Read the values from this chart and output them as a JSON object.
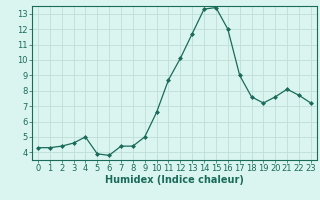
{
  "x": [
    0,
    1,
    2,
    3,
    4,
    5,
    6,
    7,
    8,
    9,
    10,
    11,
    12,
    13,
    14,
    15,
    16,
    17,
    18,
    19,
    20,
    21,
    22,
    23
  ],
  "y": [
    4.3,
    4.3,
    4.4,
    4.6,
    5.0,
    3.9,
    3.8,
    4.4,
    4.4,
    5.0,
    6.6,
    8.7,
    10.1,
    11.7,
    13.3,
    13.4,
    12.0,
    9.0,
    7.6,
    7.2,
    7.6,
    8.1,
    7.7,
    7.2
  ],
  "line_color": "#1a6b5a",
  "marker": "D",
  "marker_size": 2,
  "bg_color": "#daf5f0",
  "grid_color": "#c0ddd8",
  "xlabel": "Humidex (Indice chaleur)",
  "xlim": [
    -0.5,
    23.5
  ],
  "ylim": [
    3.5,
    13.5
  ],
  "yticks": [
    4,
    5,
    6,
    7,
    8,
    9,
    10,
    11,
    12,
    13
  ],
  "xticks": [
    0,
    1,
    2,
    3,
    4,
    5,
    6,
    7,
    8,
    9,
    10,
    11,
    12,
    13,
    14,
    15,
    16,
    17,
    18,
    19,
    20,
    21,
    22,
    23
  ],
  "tick_color": "#1a6b5a",
  "axis_color": "#1a6b5a",
  "label_fontsize": 6,
  "xlabel_fontsize": 7
}
